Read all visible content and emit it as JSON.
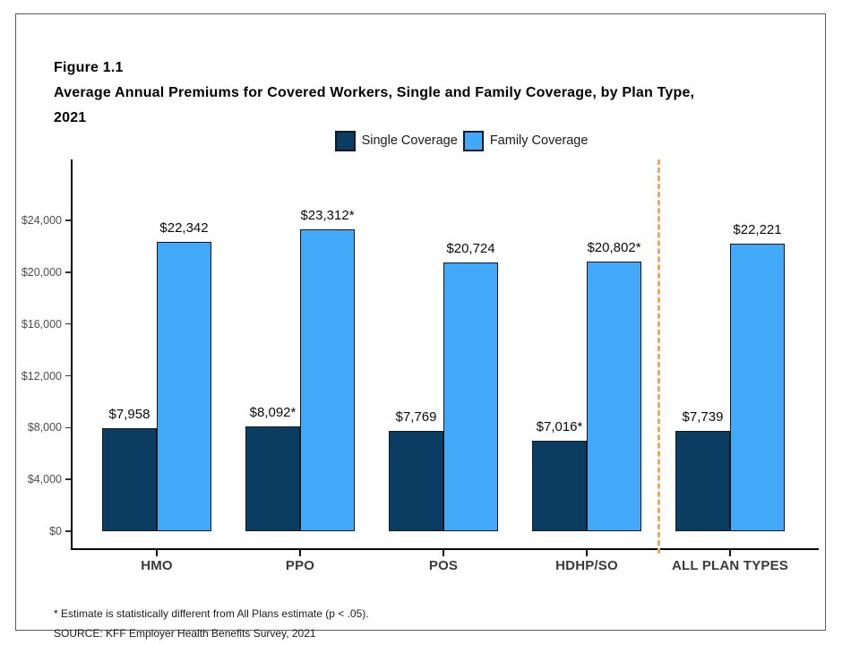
{
  "figure": {
    "label": "Figure 1.1",
    "title": "Average Annual Premiums for Covered Workers, Single and Family Coverage, by Plan Type,",
    "year": "2021"
  },
  "legend": [
    {
      "label": "Single Coverage",
      "color": "#0b3c61"
    },
    {
      "label": "Family Coverage",
      "color": "#41a9f7"
    }
  ],
  "chart_data": {
    "type": "bar",
    "title": "Average Annual Premiums for Covered Workers, Single and Family Coverage, by Plan Type, 2021",
    "categories": [
      "HMO",
      "PPO",
      "POS",
      "HDHP/SO",
      "ALL PLAN TYPES"
    ],
    "series": [
      {
        "name": "Single Coverage",
        "color": "#0b3c61",
        "values": [
          7958,
          8092,
          7769,
          7016,
          7739
        ],
        "labels": [
          "$7,958",
          "$8,092*",
          "$7,769",
          "$7,016*",
          "$7,739"
        ]
      },
      {
        "name": "Family Coverage",
        "color": "#41a9f7",
        "values": [
          22342,
          23312,
          20724,
          20802,
          22221
        ],
        "labels": [
          "$22,342",
          "$23,312*",
          "$20,724",
          "$20,802*",
          "$22,221"
        ]
      }
    ],
    "xlabel": "",
    "ylabel": "",
    "ylim": [
      0,
      24000
    ],
    "y_tick_values": [
      0,
      4000,
      8000,
      12000,
      16000,
      20000,
      24000
    ],
    "y_tick_labels": [
      "$0",
      "$4,000",
      "$8,000",
      "$12,000",
      "$16,000",
      "$20,000",
      "$24,000"
    ],
    "grid": "off",
    "legend_position": "top",
    "separator": {
      "after_category": "HDHP/SO",
      "style": "dashed",
      "color": "#f7a45c"
    }
  },
  "footnotes": {
    "note": "* Estimate is statistically different from All Plans estimate (p < .05).",
    "source": "SOURCE: KFF Employer Health Benefits Survey, 2021"
  }
}
